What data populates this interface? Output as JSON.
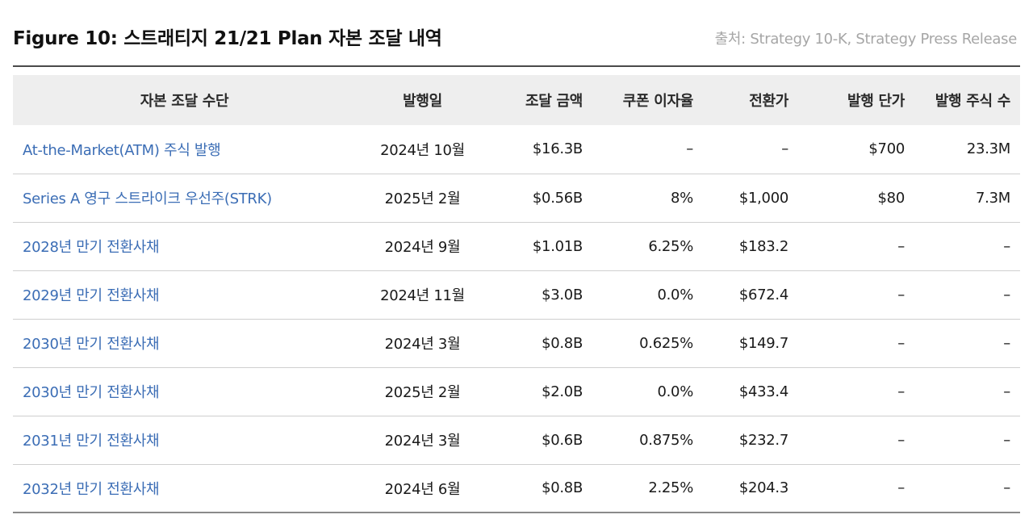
{
  "header": {
    "title": "Figure 10: 스트래티지 21/21 Plan 자본 조달 내역",
    "source": "출처: Strategy 10-K, Strategy Press Release"
  },
  "table": {
    "columns": [
      "자본 조달 수단",
      "발행일",
      "조달 금액",
      "쿠폰 이자율",
      "전환가",
      "발행 단가",
      "발행 주식 수"
    ],
    "rows": [
      [
        "At-the-Market(ATM) 주식 발행",
        "2024년 10월",
        "$16.3B",
        "–",
        "–",
        "$700",
        "23.3M"
      ],
      [
        "Series A 영구 스트라이크 우선주(STRK)",
        "2025년 2월",
        "$0.56B",
        "8%",
        "$1,000",
        "$80",
        "7.3M"
      ],
      [
        "2028년 만기 전환사채",
        "2024년 9월",
        "$1.01B",
        "6.25%",
        "$183.2",
        "–",
        "–"
      ],
      [
        "2029년 만기 전환사채",
        "2024년 11월",
        "$3.0B",
        "0.0%",
        "$672.4",
        "–",
        "–"
      ],
      [
        "2030년 만기 전환사채",
        "2024년 3월",
        "$0.8B",
        "0.625%",
        "$149.7",
        "–",
        "–"
      ],
      [
        "2030년 만기 전환사채",
        "2025년 2월",
        "$2.0B",
        "0.0%",
        "$433.4",
        "–",
        "–"
      ],
      [
        "2031년 만기 전환사채",
        "2024년 3월",
        "$0.6B",
        "0.875%",
        "$232.7",
        "–",
        "–"
      ],
      [
        "2032년 만기 전환사채",
        "2024년 6월",
        "$0.8B",
        "2.25%",
        "$204.3",
        "–",
        "–"
      ]
    ]
  },
  "colors": {
    "link_text": "#3b6db5",
    "header_bg": "#eeeeee",
    "source_text": "#a6a6a6",
    "top_rule": "#4a4a4a"
  }
}
